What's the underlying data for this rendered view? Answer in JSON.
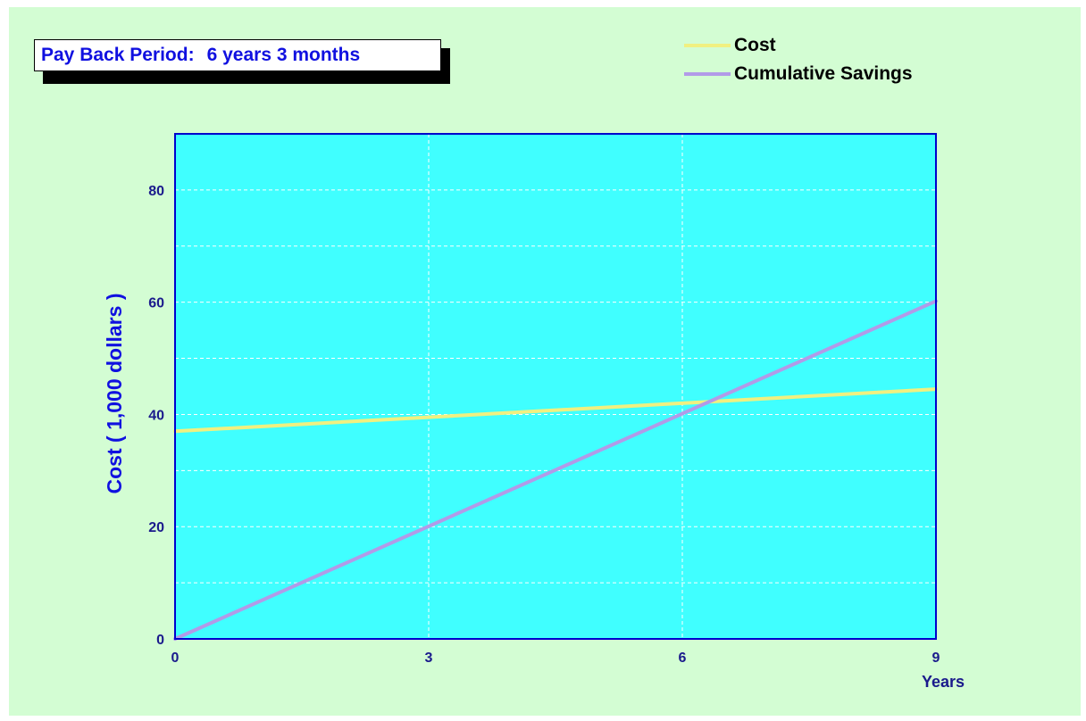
{
  "payback": {
    "label": "Pay Back Period:",
    "value": "6 years 3 months"
  },
  "colors": {
    "background": "#d3fdd3",
    "plot_area": "#40ffff",
    "axis": "#0000cc",
    "cost_line": "#f0f080",
    "savings_line": "#b29ae8",
    "text_blue": "#1010e0"
  },
  "chart_data": {
    "type": "line",
    "title": "",
    "xlabel": "Years",
    "ylabel": "Cost ( 1,000 dollars )",
    "xlim": [
      0,
      9
    ],
    "ylim": [
      0,
      90
    ],
    "x_ticks": [
      0,
      3,
      6,
      9
    ],
    "y_ticks": [
      0,
      20,
      40,
      60,
      80
    ],
    "y_minor_gridlines": [
      10,
      30,
      50,
      70
    ],
    "grid": true,
    "legend": "top-right",
    "series": [
      {
        "name": "Cost",
        "x": [
          0,
          9
        ],
        "y": [
          37,
          44.5
        ]
      },
      {
        "name": "Cumulative Savings",
        "x": [
          0,
          9
        ],
        "y": [
          0,
          60.2
        ]
      }
    ]
  }
}
